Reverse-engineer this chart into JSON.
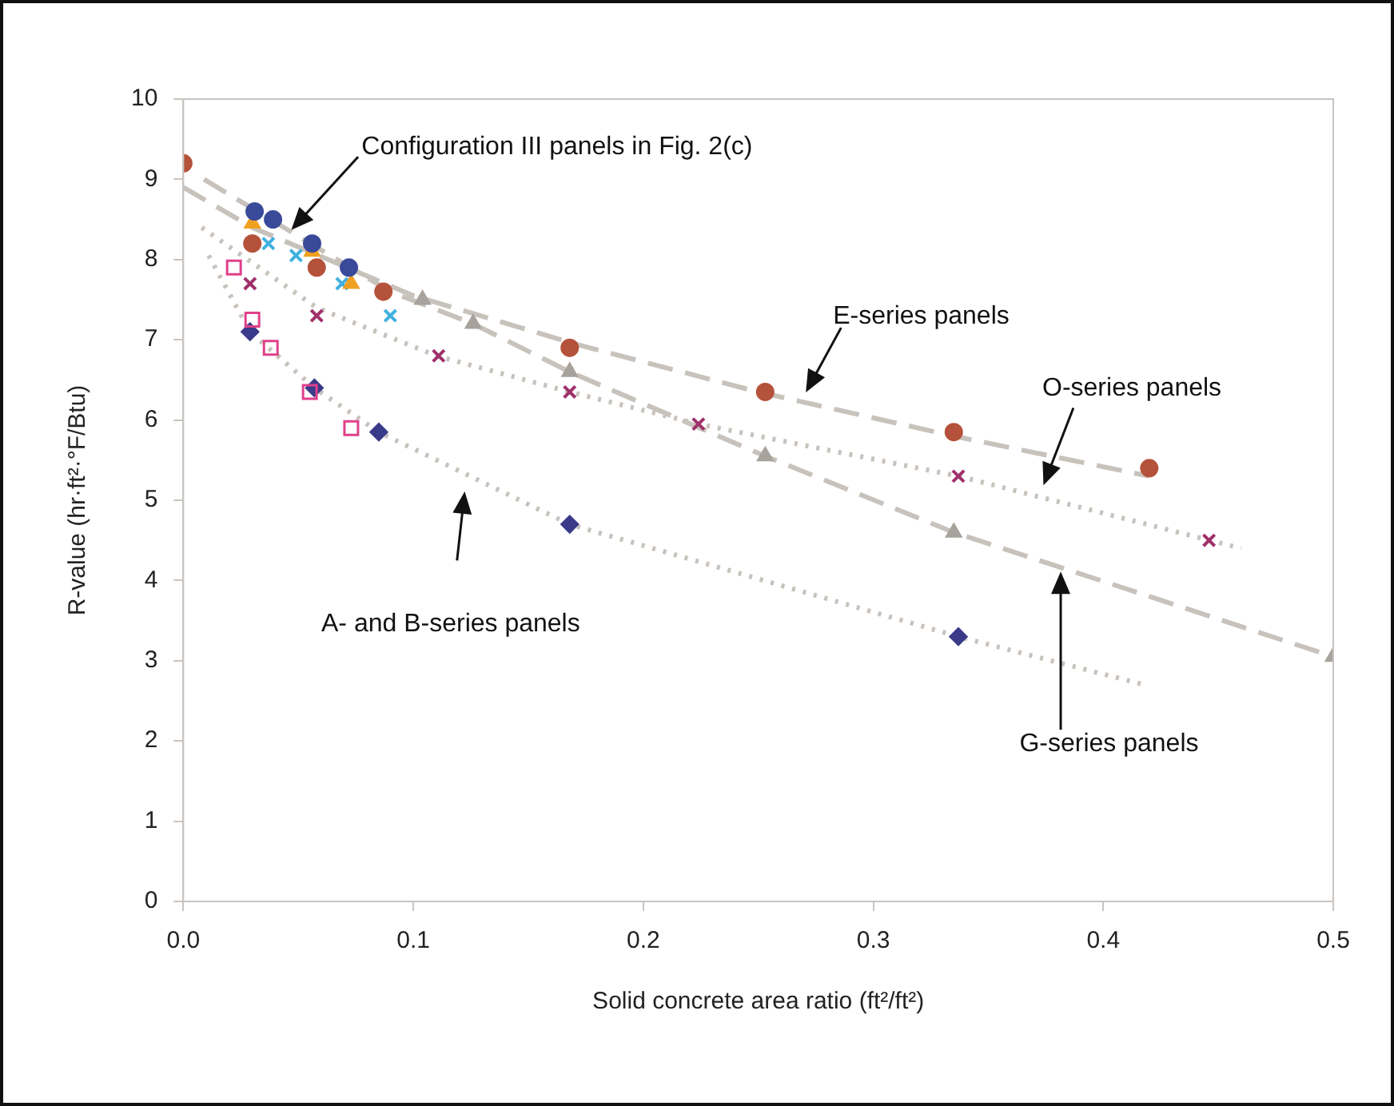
{
  "chart_data": {
    "type": "scatter",
    "xlabel": "Solid concrete area ratio (ft²/ft²)",
    "ylabel": "R-value (hr·ft²·°F/Btu)",
    "xlim": [
      0,
      0.5
    ],
    "ylim": [
      0,
      10
    ],
    "xticks": [
      {
        "value": 0,
        "label": "0.0"
      },
      0.1,
      0.2,
      0.3,
      0.4,
      0.5
    ],
    "yticks": [
      0,
      1,
      2,
      3,
      4,
      5,
      6,
      7,
      8,
      9,
      10
    ],
    "grid": false,
    "legend": false,
    "series": [
      {
        "type": "line",
        "color": "#c8c2bc",
        "marker": "none",
        "line_style": "dashed",
        "x": [
          0.0,
          0.03,
          0.1,
          0.17,
          0.25,
          0.335,
          0.42
        ],
        "values": [
          8.9,
          8.4,
          7.55,
          6.95,
          6.35,
          5.8,
          5.3
        ]
      },
      {
        "type": "line",
        "color": "#c8c2bc",
        "marker": "none",
        "line_style": "dotted",
        "x": [
          0.008,
          0.058,
          0.11,
          0.168,
          0.224,
          0.337,
          0.46
        ],
        "values": [
          8.4,
          7.4,
          6.8,
          6.35,
          5.95,
          5.3,
          4.4
        ]
      },
      {
        "type": "line",
        "color": "#c8c2bc",
        "marker": "none",
        "line_style": "dashed",
        "x": [
          0.009,
          0.09,
          0.126,
          0.168,
          0.253,
          0.335,
          0.5
        ],
        "values": [
          9.0,
          7.6,
          7.2,
          6.6,
          5.55,
          4.6,
          3.05
        ]
      },
      {
        "type": "line",
        "color": "#c8c2bc",
        "marker": "none",
        "line_style": "dotted",
        "x": [
          0.011,
          0.029,
          0.057,
          0.085,
          0.168,
          0.337,
          0.418
        ],
        "values": [
          8.05,
          7.1,
          6.4,
          5.85,
          4.7,
          3.3,
          2.7
        ]
      },
      {
        "color": "#b5523b",
        "marker": "circle",
        "x": [
          0.0,
          0.03,
          0.058,
          0.087,
          0.168,
          0.253,
          0.335,
          0.42
        ],
        "values": [
          9.2,
          8.2,
          7.9,
          7.6,
          6.9,
          6.35,
          5.85,
          5.4
        ]
      },
      {
        "color": "#3a4a9a",
        "marker": "circle",
        "x": [
          0.031,
          0.039,
          0.056,
          0.072
        ],
        "values": [
          8.6,
          8.5,
          8.2,
          7.9
        ]
      },
      {
        "color": "#f0a020",
        "marker": "triangle",
        "x": [
          0.03,
          0.056,
          0.073
        ],
        "values": [
          8.45,
          8.1,
          7.7
        ]
      },
      {
        "color": "#40b0e0",
        "marker": "cross",
        "x": [
          0.037,
          0.049,
          0.069,
          0.09
        ],
        "values": [
          8.2,
          8.05,
          7.7,
          7.3
        ]
      },
      {
        "color": "#a0306a",
        "marker": "cross",
        "x": [
          0.029,
          0.058,
          0.111,
          0.168,
          0.224,
          0.337,
          0.446
        ],
        "values": [
          7.7,
          7.3,
          6.8,
          6.35,
          5.95,
          5.3,
          4.5
        ]
      },
      {
        "color": "#e0408a",
        "marker": "square",
        "x": [
          0.022,
          0.03,
          0.038,
          0.055,
          0.073
        ],
        "values": [
          7.9,
          7.25,
          6.9,
          6.35,
          5.9
        ]
      },
      {
        "color": "#3a3a8a",
        "marker": "diamond",
        "x": [
          0.029,
          0.057,
          0.085,
          0.168,
          0.337
        ],
        "values": [
          7.1,
          6.4,
          5.85,
          4.7,
          3.3
        ]
      },
      {
        "color": "#a8a29c",
        "marker": "triangle",
        "x": [
          0.104,
          0.126,
          0.168,
          0.253,
          0.335,
          0.5
        ],
        "values": [
          7.5,
          7.2,
          6.6,
          5.55,
          4.6,
          3.05
        ]
      }
    ],
    "annotations": [
      "Configuration III panels in Fig. 2(c)",
      "E-series panels",
      "O-series panels",
      "G-series panels",
      "A- and B-series panels"
    ]
  }
}
